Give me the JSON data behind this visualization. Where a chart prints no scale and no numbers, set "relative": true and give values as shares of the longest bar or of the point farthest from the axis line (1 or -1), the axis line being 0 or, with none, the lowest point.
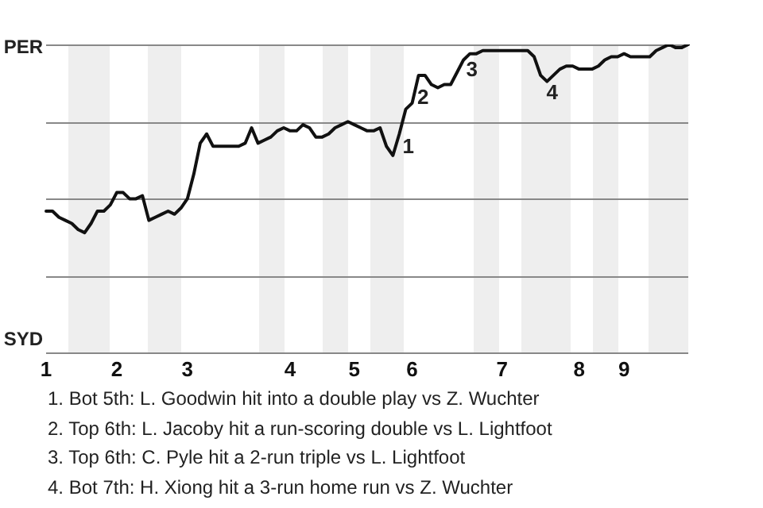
{
  "chart_data": {
    "type": "line",
    "color": "#111111",
    "grid": "y",
    "marker": "none",
    "legend": false,
    "relative": true,
    "categories": [
      "1",
      null,
      null,
      null,
      null,
      null,
      null,
      null,
      null,
      null,
      null,
      "2",
      null,
      null,
      null,
      null,
      null,
      null,
      null,
      null,
      null,
      null,
      "3",
      null,
      null,
      null,
      null,
      null,
      null,
      null,
      null,
      null,
      null,
      null,
      null,
      null,
      null,
      null,
      "4",
      null,
      null,
      null,
      null,
      null,
      null,
      null,
      null,
      null,
      "5",
      null,
      null,
      null,
      null,
      null,
      null,
      null,
      null,
      "6",
      null,
      null,
      null,
      null,
      null,
      null,
      null,
      null,
      null,
      null,
      null,
      null,
      null,
      "7",
      null,
      null,
      null,
      null,
      null,
      null,
      null,
      null,
      null,
      null,
      null,
      "8",
      null,
      null,
      null,
      null,
      null,
      null,
      "9",
      null,
      null,
      null,
      null,
      null,
      null,
      null,
      null,
      null,
      null
    ],
    "values": [
      0.46,
      0.46,
      0.44,
      0.43,
      0.42,
      0.4,
      0.39,
      0.42,
      0.46,
      0.46,
      0.48,
      0.52,
      0.52,
      0.5,
      0.5,
      0.51,
      0.43,
      0.44,
      0.45,
      0.46,
      0.45,
      0.47,
      0.5,
      0.58,
      0.68,
      0.71,
      0.67,
      0.67,
      0.67,
      0.67,
      0.67,
      0.68,
      0.73,
      0.68,
      0.69,
      0.7,
      0.72,
      0.73,
      0.72,
      0.72,
      0.74,
      0.73,
      0.7,
      0.7,
      0.71,
      0.73,
      0.74,
      0.75,
      0.74,
      0.73,
      0.72,
      0.72,
      0.73,
      0.67,
      0.64,
      0.71,
      0.79,
      0.81,
      0.9,
      0.9,
      0.87,
      0.86,
      0.87,
      0.87,
      0.91,
      0.95,
      0.97,
      0.97,
      0.98,
      0.98,
      0.98,
      0.98,
      0.98,
      0.98,
      0.98,
      0.98,
      0.96,
      0.9,
      0.88,
      0.9,
      0.92,
      0.93,
      0.93,
      0.92,
      0.92,
      0.92,
      0.93,
      0.95,
      0.96,
      0.96,
      0.97,
      0.96,
      0.96,
      0.96,
      0.96,
      0.98,
      0.99,
      1,
      0.99,
      0.99,
      1
    ],
    "annotations": [
      "PER",
      "SYD",
      "1",
      "2",
      "3",
      "4",
      "1. Bot 5th: L. Goodwin hit into a double play vs Z. Wuchter",
      "2. Top 6th: L. Jacoby hit a run-scoring double vs L. Lightfoot",
      "3. Top 6th: C. Pyle hit a 2-run triple vs L. Lightfoot",
      "4. Bot 7th: H. Xiong hit a 3-run home run vs Z. Wuchter"
    ]
  }
}
